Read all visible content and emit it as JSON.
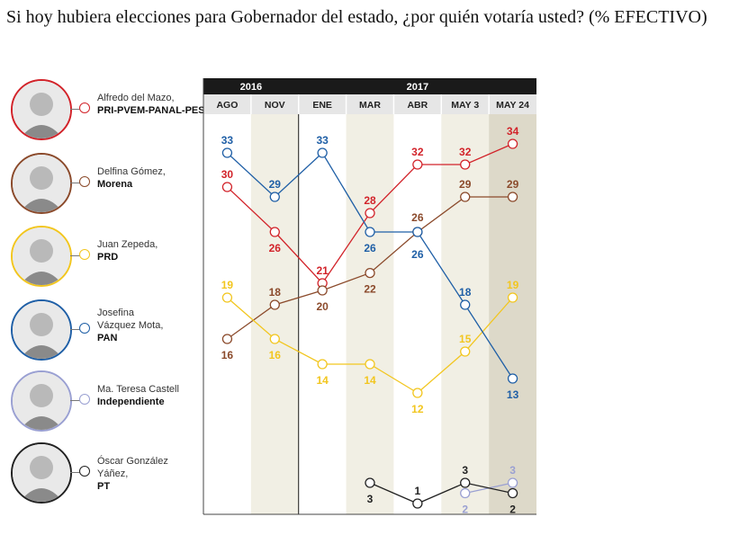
{
  "title": "Si hoy hubiera elecciones para Gobernador del estado, ¿por quién votaría usted? (% EFECTIVO)",
  "candidates": [
    {
      "name": "Alfredo del Mazo,",
      "party": "PRI-PVEM-PANAL-PES",
      "color": "#d2232a"
    },
    {
      "name": "Delfina Gómez,",
      "party": "Morena",
      "color": "#8b4a2b"
    },
    {
      "name": "Juan Zepeda,",
      "party": "PRD",
      "color": "#f2c61f"
    },
    {
      "name": "Josefina Vázquez Mota,",
      "party": "PAN",
      "color": "#1f5fa6"
    },
    {
      "name": "Ma. Teresa Castell",
      "party": "Independiente",
      "color": "#9aa0d2"
    },
    {
      "name": "Óscar González Yáñez,",
      "party": "PT",
      "color": "#222222"
    }
  ],
  "chart_data": {
    "type": "line",
    "title": "Si hoy hubiera elecciones para Gobernador del estado, ¿por quién votaría usted? (% EFECTIVO)",
    "years": [
      {
        "label": "2016",
        "span": [
          0,
          1
        ]
      },
      {
        "label": "2017",
        "span": [
          2,
          6
        ]
      }
    ],
    "categories": [
      "AGO",
      "NOV",
      "ENE",
      "MAR",
      "ABR",
      "MAY 3",
      "MAY 24"
    ],
    "series": [
      {
        "name": "Alfredo del Mazo, PRI-PVEM-PANAL-PES",
        "color": "#d2232a",
        "values": [
          30,
          26,
          21,
          28,
          32,
          32,
          34
        ]
      },
      {
        "name": "Delfina Gómez, Morena",
        "color": "#8b4a2b",
        "values": [
          16,
          18,
          20,
          22,
          26,
          29,
          29
        ]
      },
      {
        "name": "Juan Zepeda, PRD",
        "color": "#f2c61f",
        "values": [
          19,
          16,
          14,
          14,
          12,
          15,
          19
        ]
      },
      {
        "name": "Josefina Vázquez Mota, PAN",
        "color": "#1f5fa6",
        "values": [
          33,
          29,
          33,
          26,
          26,
          18,
          13
        ]
      },
      {
        "name": "Ma. Teresa Castell, Independiente",
        "color": "#9aa0d2",
        "values": [
          null,
          null,
          null,
          null,
          null,
          2,
          3
        ]
      },
      {
        "name": "Óscar González Yáñez, PT",
        "color": "#222222",
        "values": [
          null,
          null,
          null,
          3,
          1,
          3,
          2
        ]
      }
    ]
  }
}
